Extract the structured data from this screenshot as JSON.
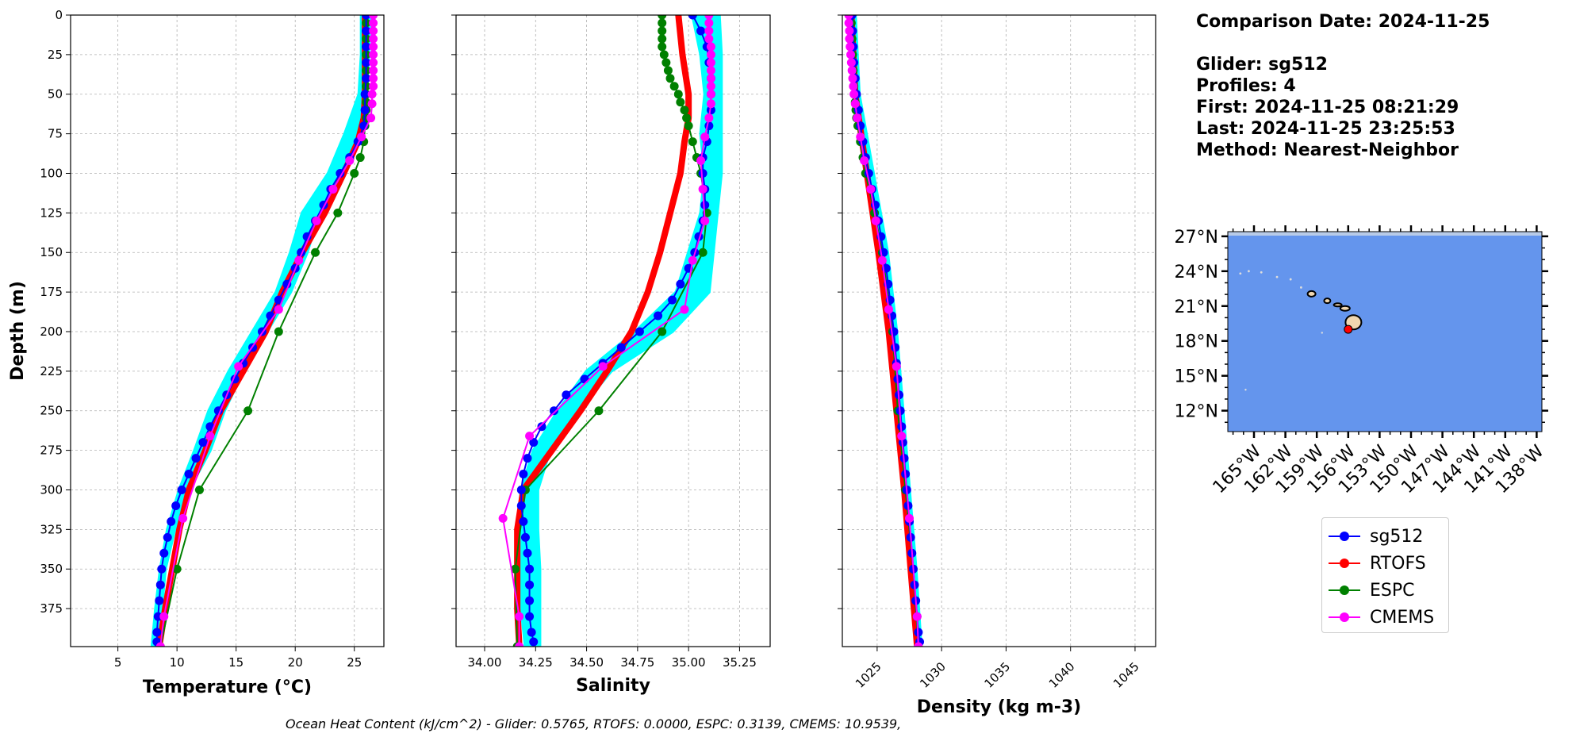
{
  "info": {
    "comparison_date": "Comparison Date: 2024-11-25",
    "glider": "Glider: sg512",
    "profiles": "Profiles: 4",
    "first": "First: 2024-11-25 08:21:29",
    "last": "Last: 2024-11-25 23:25:53",
    "method": "Method: Nearest-Neighbor"
  },
  "footnote": "Ocean Heat Content (kJ/cm^2) - Glider: 0.5765,  RTOFS: 0.0000,  ESPC: 0.3139,  CMEMS: 10.9539,",
  "chart_data": [
    {
      "type": "line",
      "panel": "temperature",
      "xlabel": "Temperature (°C)",
      "ylabel": "Depth (m)",
      "xlim": [
        1,
        27.5
      ],
      "ylim": [
        399,
        0
      ],
      "xticks": [
        5,
        10,
        15,
        20,
        25
      ],
      "yticks": [
        0,
        25,
        50,
        75,
        100,
        125,
        150,
        175,
        200,
        225,
        250,
        275,
        300,
        325,
        350,
        375
      ],
      "grid": true,
      "glider_raw": {
        "color": "#00ffff",
        "depth": [
          0,
          25,
          50,
          75,
          100,
          125,
          150,
          175,
          200,
          225,
          250,
          275,
          300,
          325,
          350,
          375,
          399
        ],
        "min": [
          25.6,
          25.6,
          25.4,
          24.2,
          22.8,
          20.6,
          19.6,
          18.4,
          16.4,
          14.4,
          12.7,
          11.5,
          10.2,
          9.2,
          8.6,
          8.2,
          7.9
        ],
        "max": [
          26.3,
          26.2,
          26.0,
          25.4,
          24.2,
          22.0,
          21.0,
          19.6,
          17.6,
          15.6,
          14.0,
          12.8,
          11.0,
          9.8,
          9.0,
          8.7,
          8.4
        ]
      },
      "series": [
        {
          "name": "sg512",
          "color": "#0000ff",
          "marker": true,
          "depth": [
            0,
            10,
            20,
            30,
            40,
            50,
            60,
            70,
            80,
            90,
            100,
            110,
            120,
            130,
            140,
            150,
            160,
            170,
            180,
            190,
            200,
            210,
            220,
            230,
            240,
            250,
            260,
            270,
            280,
            290,
            300,
            310,
            320,
            330,
            340,
            350,
            360,
            370,
            380,
            390,
            396
          ],
          "values": [
            26.0,
            26.0,
            26.0,
            26.0,
            26.0,
            25.9,
            25.9,
            25.8,
            25.3,
            24.6,
            23.8,
            23.0,
            22.4,
            21.7,
            21.0,
            20.5,
            20.0,
            19.3,
            18.6,
            17.9,
            17.2,
            16.4,
            15.6,
            14.9,
            14.2,
            13.5,
            12.8,
            12.2,
            11.6,
            11.0,
            10.4,
            9.9,
            9.5,
            9.2,
            8.9,
            8.7,
            8.6,
            8.5,
            8.4,
            8.3,
            8.3
          ]
        },
        {
          "name": "RTOFS",
          "color": "#ff0000",
          "marker": false,
          "bold": true,
          "depth": [
            0,
            25,
            50,
            65,
            80,
            100,
            125,
            150,
            175,
            200,
            225,
            250,
            275,
            300,
            325,
            350,
            375,
            399
          ],
          "values": [
            25.9,
            25.9,
            25.9,
            25.8,
            25.3,
            24.1,
            22.5,
            20.6,
            18.9,
            17.5,
            15.6,
            13.7,
            12.4,
            11.0,
            10.2,
            9.6,
            9.0,
            8.5
          ]
        },
        {
          "name": "ESPC",
          "color": "#008000",
          "marker": true,
          "depth": [
            0,
            5,
            10,
            15,
            20,
            25,
            30,
            35,
            40,
            45,
            50,
            55,
            60,
            65,
            70,
            80,
            90,
            100,
            125,
            150,
            200,
            250,
            300,
            350,
            399
          ],
          "values": [
            26.0,
            26.0,
            26.0,
            26.0,
            26.0,
            26.0,
            26.0,
            26.0,
            26.0,
            26.0,
            26.0,
            26.0,
            26.0,
            26.0,
            25.9,
            25.8,
            25.5,
            25.0,
            23.6,
            21.7,
            18.6,
            16.0,
            11.9,
            10.0,
            8.6
          ]
        },
        {
          "name": "CMEMS",
          "color": "#ff00ff",
          "marker": true,
          "depth": [
            0,
            5,
            10,
            15,
            20,
            25,
            30,
            35,
            40,
            45,
            50,
            56,
            65,
            77,
            92,
            110,
            130,
            155,
            186,
            222,
            266,
            318,
            380,
            399
          ],
          "values": [
            26.6,
            26.6,
            26.6,
            26.6,
            26.6,
            26.6,
            26.6,
            26.6,
            26.6,
            26.6,
            26.5,
            26.5,
            26.4,
            25.6,
            24.6,
            23.2,
            21.8,
            20.3,
            18.6,
            15.2,
            12.8,
            10.5,
            8.9,
            8.6
          ]
        }
      ]
    },
    {
      "type": "line",
      "panel": "salinity",
      "xlabel": "Salinity",
      "xlim": [
        33.86,
        35.4
      ],
      "ylim": [
        399,
        0
      ],
      "xticks": [
        "34.00",
        "34.25",
        "34.50",
        "34.75",
        "35.00",
        "35.25"
      ],
      "grid": true,
      "glider_raw": {
        "color": "#00ffff",
        "depth": [
          0,
          25,
          50,
          75,
          100,
          125,
          150,
          175,
          200,
          225,
          250,
          275,
          300,
          325,
          350,
          375,
          399
        ],
        "min": [
          35.02,
          35.06,
          35.08,
          35.06,
          35.08,
          35.06,
          35.0,
          34.94,
          34.74,
          34.5,
          34.36,
          34.24,
          34.18,
          34.16,
          34.16,
          34.18,
          34.2
        ],
        "max": [
          35.15,
          35.16,
          35.16,
          35.16,
          35.16,
          35.14,
          35.12,
          35.1,
          34.92,
          34.62,
          34.46,
          34.32,
          34.26,
          34.26,
          34.27,
          34.27,
          34.27
        ]
      },
      "series": [
        {
          "name": "sg512",
          "color": "#0000ff",
          "marker": true,
          "depth": [
            0,
            10,
            20,
            30,
            40,
            50,
            60,
            70,
            80,
            90,
            100,
            110,
            120,
            130,
            140,
            150,
            160,
            170,
            180,
            190,
            200,
            210,
            220,
            230,
            240,
            250,
            260,
            270,
            280,
            290,
            300,
            310,
            320,
            330,
            340,
            350,
            360,
            370,
            380,
            390,
            396
          ],
          "values": [
            35.02,
            35.06,
            35.09,
            35.1,
            35.11,
            35.11,
            35.11,
            35.1,
            35.09,
            35.07,
            35.07,
            35.08,
            35.08,
            35.07,
            35.05,
            35.03,
            35.0,
            34.96,
            34.92,
            34.85,
            34.76,
            34.67,
            34.58,
            34.49,
            34.4,
            34.34,
            34.28,
            34.24,
            34.21,
            34.19,
            34.18,
            34.18,
            34.19,
            34.2,
            34.21,
            34.22,
            34.22,
            34.22,
            34.22,
            34.23,
            34.24
          ]
        },
        {
          "name": "RTOFS",
          "color": "#ff0000",
          "marker": false,
          "bold": true,
          "depth": [
            0,
            25,
            50,
            65,
            80,
            100,
            125,
            150,
            175,
            200,
            225,
            250,
            275,
            300,
            325,
            350,
            375,
            399
          ],
          "values": [
            34.95,
            34.97,
            35.0,
            35.0,
            34.98,
            34.96,
            34.91,
            34.86,
            34.8,
            34.72,
            34.6,
            34.47,
            34.33,
            34.19,
            34.16,
            34.16,
            34.16,
            34.17
          ]
        },
        {
          "name": "ESPC",
          "color": "#008000",
          "marker": true,
          "depth": [
            0,
            5,
            10,
            15,
            20,
            25,
            30,
            35,
            40,
            45,
            50,
            55,
            60,
            65,
            70,
            80,
            90,
            100,
            125,
            150,
            200,
            250,
            300,
            350,
            399
          ],
          "values": [
            34.87,
            34.87,
            34.87,
            34.87,
            34.87,
            34.88,
            34.89,
            34.9,
            34.91,
            34.93,
            34.95,
            34.96,
            34.98,
            34.99,
            35.0,
            35.02,
            35.04,
            35.06,
            35.09,
            35.07,
            34.87,
            34.56,
            34.2,
            34.15,
            34.16
          ]
        },
        {
          "name": "CMEMS",
          "color": "#ff00ff",
          "marker": true,
          "depth": [
            0,
            5,
            10,
            15,
            20,
            25,
            30,
            35,
            40,
            45,
            50,
            56,
            65,
            77,
            92,
            110,
            130,
            155,
            186,
            222,
            266,
            318,
            380,
            399
          ],
          "values": [
            35.1,
            35.1,
            35.1,
            35.1,
            35.11,
            35.11,
            35.11,
            35.11,
            35.11,
            35.11,
            35.11,
            35.11,
            35.1,
            35.08,
            35.06,
            35.07,
            35.08,
            35.02,
            34.98,
            34.58,
            34.22,
            34.09,
            34.17,
            34.17
          ]
        }
      ]
    },
    {
      "type": "line",
      "panel": "density",
      "xlabel": "Density (kg m-3)",
      "xlim": [
        1022.3,
        1046.6
      ],
      "ylim": [
        399,
        0
      ],
      "xticks": [
        1025,
        1030,
        1035,
        1040,
        1045
      ],
      "grid": true,
      "glider_raw": {
        "color": "#00ffff",
        "depth": [
          0,
          50,
          100,
          150,
          200,
          250,
          300,
          350,
          399
        ],
        "min": [
          1022.9,
          1023.2,
          1024.2,
          1025.2,
          1026.1,
          1026.6,
          1027.2,
          1027.7,
          1028.1
        ],
        "max": [
          1023.3,
          1023.6,
          1024.7,
          1025.8,
          1026.5,
          1027.0,
          1027.5,
          1028.0,
          1028.4
        ]
      },
      "series": [
        {
          "name": "sg512",
          "color": "#0000ff",
          "marker": true,
          "depth": [
            0,
            10,
            20,
            30,
            40,
            50,
            60,
            70,
            80,
            90,
            100,
            110,
            120,
            130,
            140,
            150,
            160,
            170,
            180,
            190,
            200,
            210,
            220,
            230,
            240,
            250,
            260,
            270,
            280,
            290,
            300,
            310,
            320,
            330,
            340,
            350,
            360,
            370,
            380,
            390,
            396
          ],
          "values": [
            1023.05,
            1023.1,
            1023.15,
            1023.2,
            1023.3,
            1023.4,
            1023.55,
            1023.7,
            1023.9,
            1024.1,
            1024.35,
            1024.6,
            1024.85,
            1025.1,
            1025.3,
            1025.5,
            1025.7,
            1025.85,
            1026.0,
            1026.15,
            1026.3,
            1026.4,
            1026.5,
            1026.6,
            1026.7,
            1026.8,
            1026.9,
            1027.0,
            1027.1,
            1027.2,
            1027.3,
            1027.4,
            1027.5,
            1027.6,
            1027.7,
            1027.8,
            1027.9,
            1028.0,
            1028.1,
            1028.2,
            1028.3
          ]
        },
        {
          "name": "RTOFS",
          "color": "#ff0000",
          "marker": false,
          "bold": true,
          "depth": [
            0,
            50,
            100,
            150,
            200,
            250,
            300,
            350,
            399
          ],
          "values": [
            1023.0,
            1023.3,
            1024.2,
            1025.1,
            1025.9,
            1026.5,
            1027.1,
            1027.6,
            1028.1
          ]
        },
        {
          "name": "ESPC",
          "color": "#008000",
          "marker": true,
          "depth": [
            0,
            5,
            10,
            15,
            20,
            25,
            30,
            35,
            40,
            45,
            50,
            55,
            60,
            65,
            70,
            80,
            90,
            100,
            125,
            150,
            200,
            250,
            300,
            350,
            399
          ],
          "values": [
            1023.0,
            1023.0,
            1023.0,
            1023.05,
            1023.05,
            1023.1,
            1023.1,
            1023.15,
            1023.15,
            1023.2,
            1023.25,
            1023.3,
            1023.35,
            1023.4,
            1023.5,
            1023.7,
            1023.9,
            1024.1,
            1024.8,
            1025.4,
            1026.2,
            1026.6,
            1027.2,
            1027.8,
            1028.2
          ]
        },
        {
          "name": "CMEMS",
          "color": "#ff00ff",
          "marker": true,
          "depth": [
            0,
            5,
            10,
            15,
            20,
            25,
            30,
            35,
            40,
            45,
            50,
            56,
            65,
            77,
            92,
            110,
            130,
            155,
            186,
            222,
            266,
            318,
            380,
            399
          ],
          "values": [
            1022.8,
            1022.8,
            1022.85,
            1022.85,
            1022.9,
            1022.95,
            1023.0,
            1023.05,
            1023.1,
            1023.15,
            1023.2,
            1023.3,
            1023.45,
            1023.7,
            1024.0,
            1024.5,
            1024.9,
            1025.4,
            1025.9,
            1026.5,
            1026.9,
            1027.5,
            1028.1,
            1028.2
          ]
        }
      ]
    },
    {
      "type": "map",
      "panel": "location",
      "ocean_color": "#6495ed",
      "lon_range": [
        -167.5,
        -137.5
      ],
      "lat_range": [
        10.2,
        27.4
      ],
      "lat_ticks": [
        "27°N",
        "24°N",
        "21°N",
        "18°N",
        "15°N",
        "12°N"
      ],
      "lat_values": [
        27,
        24,
        21,
        18,
        15,
        12
      ],
      "lon_ticks": [
        "165°W",
        "162°W",
        "159°W",
        "156°W",
        "153°W",
        "150°W",
        "147°W",
        "144°W",
        "141°W",
        "138°W"
      ],
      "lon_values": [
        -165,
        -162,
        -159,
        -156,
        -153,
        -150,
        -147,
        -144,
        -141,
        -138
      ],
      "glider_position": {
        "lon": -156.0,
        "lat": 19.0,
        "color": "#ff0000"
      }
    }
  ],
  "legend": [
    {
      "label": "sg512",
      "color": "#0000ff"
    },
    {
      "label": "RTOFS",
      "color": "#ff0000"
    },
    {
      "label": "ESPC",
      "color": "#008000"
    },
    {
      "label": "CMEMS",
      "color": "#ff00ff"
    }
  ]
}
